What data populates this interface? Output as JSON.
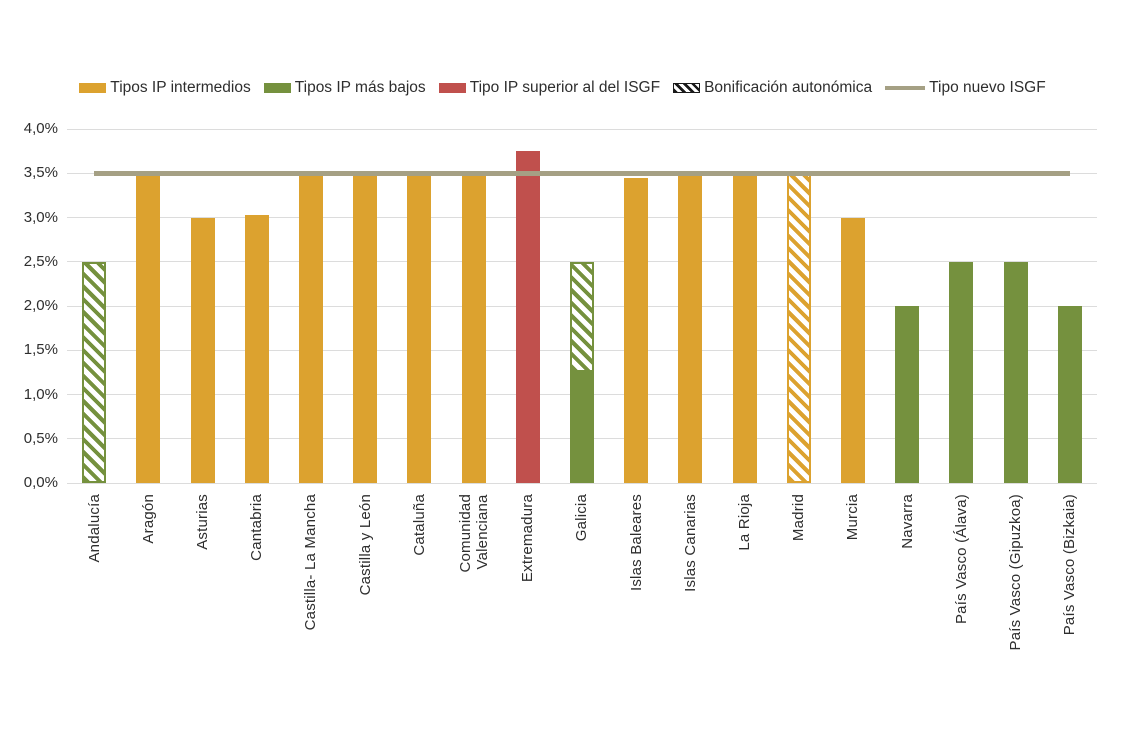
{
  "page": {
    "background": "#ffffff"
  },
  "colors": {
    "intermedio": "#DCA22F",
    "bajo": "#75913E",
    "superior": "#C0504D",
    "bonificacion_legend": "#1A1A1A",
    "isgf_line": "#A5A084",
    "grid": "#DCDCDC",
    "text": "#2E2E2E"
  },
  "chart_data": {
    "type": "bar",
    "title": "",
    "xlabel": "",
    "ylabel": "",
    "ylim": [
      0,
      4.0
    ],
    "ytick_step": 0.5,
    "grid": true,
    "legend_position": "top",
    "xtick_rotation": 90,
    "yticks": [
      {
        "value": 0.0,
        "label": "0,0%"
      },
      {
        "value": 0.5,
        "label": "0,5%"
      },
      {
        "value": 1.0,
        "label": "1,0%"
      },
      {
        "value": 1.5,
        "label": "1,5%"
      },
      {
        "value": 2.0,
        "label": "2,0%"
      },
      {
        "value": 2.5,
        "label": "2,5%"
      },
      {
        "value": 3.0,
        "label": "3,0%"
      },
      {
        "value": 3.5,
        "label": "3,5%"
      },
      {
        "value": 4.0,
        "label": "4,0%"
      }
    ],
    "legend": [
      {
        "label": "Tipos IP intermedios",
        "swatch": "solid",
        "color": "#DCA22F"
      },
      {
        "label": "Tipos IP más bajos",
        "swatch": "solid",
        "color": "#75913E"
      },
      {
        "label": "Tipo IP superior al del ISGF",
        "swatch": "solid",
        "color": "#C0504D"
      },
      {
        "label": "Bonificación autonómica",
        "swatch": "hatch",
        "color": "#1A1A1A"
      },
      {
        "label": "Tipo nuevo ISGF",
        "swatch": "line",
        "color": "#A5A084"
      }
    ],
    "reference_line": {
      "name": "Tipo nuevo ISGF",
      "value": 3.5,
      "color": "#A5A084"
    },
    "categories": [
      {
        "label": "Andalucía",
        "lines": [
          "Andalucía"
        ]
      },
      {
        "label": "Aragón",
        "lines": [
          "Aragón"
        ]
      },
      {
        "label": "Asturias",
        "lines": [
          "Asturias"
        ]
      },
      {
        "label": "Cantabria",
        "lines": [
          "Cantabria"
        ]
      },
      {
        "label": "Castilla- La Mancha",
        "lines": [
          "Castilla- La Mancha"
        ]
      },
      {
        "label": "Castilla y León",
        "lines": [
          "Castilla y León"
        ]
      },
      {
        "label": "Cataluña",
        "lines": [
          "Cataluña"
        ]
      },
      {
        "label": "Comunidad Valenciana",
        "lines": [
          "Comunidad",
          "Valenciana"
        ]
      },
      {
        "label": "Extremadura",
        "lines": [
          "Extremadura"
        ]
      },
      {
        "label": "Galicia",
        "lines": [
          "Galicia"
        ]
      },
      {
        "label": "Islas Baleares",
        "lines": [
          "Islas Baleares"
        ]
      },
      {
        "label": "Islas Canarias",
        "lines": [
          "Islas Canarias"
        ]
      },
      {
        "label": "La Rioja",
        "lines": [
          "La Rioja"
        ]
      },
      {
        "label": "Madrid",
        "lines": [
          "Madrid"
        ]
      },
      {
        "label": "Murcia",
        "lines": [
          "Murcia"
        ]
      },
      {
        "label": "Navarra",
        "lines": [
          "Navarra"
        ]
      },
      {
        "label": "País Vasco (Álava)",
        "lines": [
          "País Vasco (Álava)"
        ]
      },
      {
        "label": "País Vasco (Gipuzkoa)",
        "lines": [
          "País Vasco (Gipuzkoa)"
        ]
      },
      {
        "label": "País Vasco (Bizkaia)",
        "lines": [
          "País Vasco (Bizkaia)"
        ]
      }
    ],
    "bars": [
      {
        "category": "Andalucía",
        "segments": [
          {
            "value": 2.5,
            "color": "#75913E",
            "pattern": "hatch",
            "series": "Bonificación autonómica"
          }
        ]
      },
      {
        "category": "Aragón",
        "segments": [
          {
            "value": 3.5,
            "color": "#DCA22F",
            "pattern": "solid",
            "series": "Tipos IP intermedios"
          }
        ]
      },
      {
        "category": "Asturias",
        "segments": [
          {
            "value": 3.0,
            "color": "#DCA22F",
            "pattern": "solid",
            "series": "Tipos IP intermedios"
          }
        ]
      },
      {
        "category": "Cantabria",
        "segments": [
          {
            "value": 3.03,
            "color": "#DCA22F",
            "pattern": "solid",
            "series": "Tipos IP intermedios"
          }
        ]
      },
      {
        "category": "Castilla- La Mancha",
        "segments": [
          {
            "value": 3.5,
            "color": "#DCA22F",
            "pattern": "solid",
            "series": "Tipos IP intermedios"
          }
        ]
      },
      {
        "category": "Castilla y León",
        "segments": [
          {
            "value": 3.5,
            "color": "#DCA22F",
            "pattern": "solid",
            "series": "Tipos IP intermedios"
          }
        ]
      },
      {
        "category": "Cataluña",
        "segments": [
          {
            "value": 3.5,
            "color": "#DCA22F",
            "pattern": "solid",
            "series": "Tipos IP intermedios"
          }
        ]
      },
      {
        "category": "Comunidad Valenciana",
        "segments": [
          {
            "value": 3.5,
            "color": "#DCA22F",
            "pattern": "solid",
            "series": "Tipos IP intermedios"
          }
        ]
      },
      {
        "category": "Extremadura",
        "segments": [
          {
            "value": 3.75,
            "color": "#C0504D",
            "pattern": "solid",
            "series": "Tipo IP superior al del ISGF"
          }
        ]
      },
      {
        "category": "Galicia",
        "segments": [
          {
            "value": 1.25,
            "color": "#75913E",
            "pattern": "solid",
            "series": "Tipos IP más bajos"
          },
          {
            "value": 1.25,
            "color": "#75913E",
            "pattern": "hatch",
            "series": "Bonificación autonómica"
          }
        ]
      },
      {
        "category": "Islas Baleares",
        "segments": [
          {
            "value": 3.45,
            "color": "#DCA22F",
            "pattern": "solid",
            "series": "Tipos IP intermedios"
          }
        ]
      },
      {
        "category": "Islas Canarias",
        "segments": [
          {
            "value": 3.5,
            "color": "#DCA22F",
            "pattern": "solid",
            "series": "Tipos IP intermedios"
          }
        ]
      },
      {
        "category": "La Rioja",
        "segments": [
          {
            "value": 3.5,
            "color": "#DCA22F",
            "pattern": "solid",
            "series": "Tipos IP intermedios"
          }
        ]
      },
      {
        "category": "Madrid",
        "segments": [
          {
            "value": 3.5,
            "color": "#DCA22F",
            "pattern": "hatch",
            "series": "Bonificación autonómica"
          }
        ]
      },
      {
        "category": "Murcia",
        "segments": [
          {
            "value": 3.0,
            "color": "#DCA22F",
            "pattern": "solid",
            "series": "Tipos IP intermedios"
          }
        ]
      },
      {
        "category": "Navarra",
        "segments": [
          {
            "value": 2.0,
            "color": "#75913E",
            "pattern": "solid",
            "series": "Tipos IP más bajos"
          }
        ]
      },
      {
        "category": "País Vasco (Álava)",
        "segments": [
          {
            "value": 2.5,
            "color": "#75913E",
            "pattern": "solid",
            "series": "Tipos IP más bajos"
          }
        ]
      },
      {
        "category": "País Vasco (Gipuzkoa)",
        "segments": [
          {
            "value": 2.5,
            "color": "#75913E",
            "pattern": "solid",
            "series": "Tipos IP más bajos"
          }
        ]
      },
      {
        "category": "País Vasco (Bizkaia)",
        "segments": [
          {
            "value": 2.0,
            "color": "#75913E",
            "pattern": "solid",
            "series": "Tipos IP más bajos"
          }
        ]
      }
    ]
  }
}
